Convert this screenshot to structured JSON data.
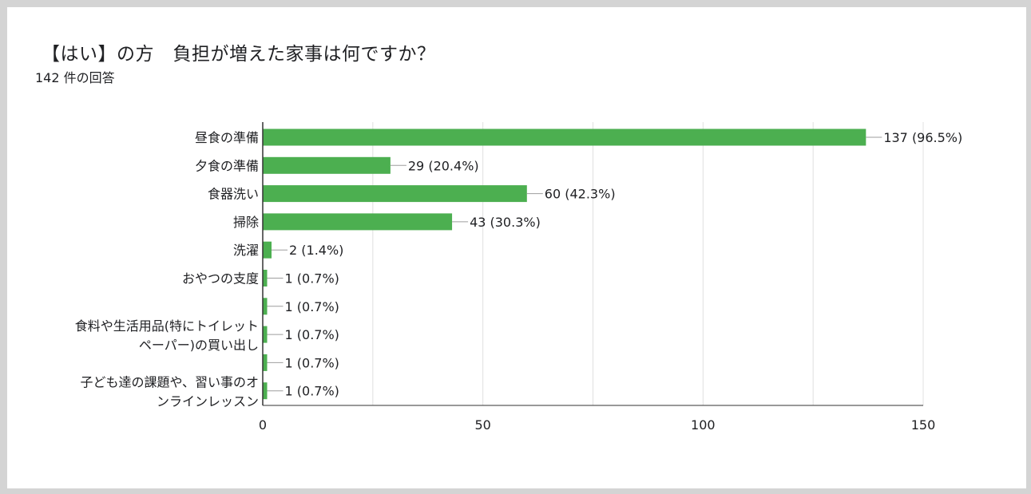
{
  "title": "【はい】の方　負担が増えた家事は何ですか？",
  "subtitle": "142 件の回答",
  "colors": {
    "bar": "#4caf50",
    "grid": "#e0e0e0",
    "axis": "#333333",
    "text": "#202124"
  },
  "chart_data": {
    "type": "bar",
    "orientation": "horizontal",
    "categories": [
      [
        "昼食の準備"
      ],
      [
        "夕食の準備"
      ],
      [
        "食器洗い"
      ],
      [
        "掃除"
      ],
      [
        "洗濯"
      ],
      [
        "おやつの支度"
      ],
      [],
      [
        "食料や生活用品(特にトイレット",
        "ペーパー)の買い出し"
      ],
      [],
      [
        "子ども達の課題や、習い事のオ",
        "ンラインレッスン"
      ]
    ],
    "values": [
      137,
      29,
      60,
      43,
      2,
      1,
      1,
      1,
      1,
      1
    ],
    "data_labels": [
      "137 (96.5%)",
      "29 (20.4%)",
      "60 (42.3%)",
      "43 (30.3%)",
      "2 (1.4%)",
      "1 (0.7%)",
      "1 (0.7%)",
      "1 (0.7%)",
      "1 (0.7%)",
      "1 (0.7%)"
    ],
    "xlim": [
      0,
      150
    ],
    "xticks": [
      0,
      50,
      100,
      150
    ],
    "grid": true,
    "legend": "none"
  }
}
